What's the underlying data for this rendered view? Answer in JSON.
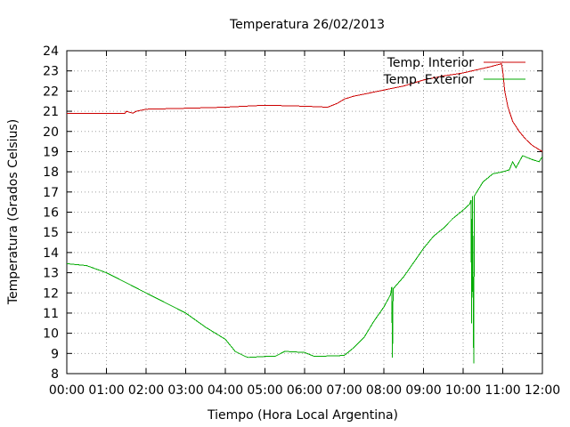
{
  "chart_data": {
    "type": "line",
    "title": "Temperatura 26/02/2013",
    "xlabel": "Tiempo (Hora Local Argentina)",
    "ylabel": "Temperatura (Grados Celsius)",
    "xlim": [
      "00:00",
      "12:00"
    ],
    "ylim": [
      8,
      24
    ],
    "grid": true,
    "legend_position": "top-right",
    "x_ticks": [
      "00:00",
      "01:00",
      "02:00",
      "03:00",
      "04:00",
      "05:00",
      "06:00",
      "07:00",
      "08:00",
      "09:00",
      "10:00",
      "11:00",
      "12:00"
    ],
    "y_ticks": [
      8,
      9,
      10,
      11,
      12,
      13,
      14,
      15,
      16,
      17,
      18,
      19,
      20,
      21,
      22,
      23,
      24
    ],
    "series": [
      {
        "name": "Temp. Interior",
        "color": "#cc0000",
        "points": [
          [
            "00:00",
            20.9
          ],
          [
            "01:00",
            20.9
          ],
          [
            "01:28",
            20.9
          ],
          [
            "01:30",
            21.0
          ],
          [
            "01:40",
            20.9
          ],
          [
            "01:45",
            21.0
          ],
          [
            "02:00",
            21.1
          ],
          [
            "03:00",
            21.15
          ],
          [
            "04:00",
            21.2
          ],
          [
            "05:00",
            21.3
          ],
          [
            "06:00",
            21.25
          ],
          [
            "06:35",
            21.2
          ],
          [
            "06:50",
            21.4
          ],
          [
            "07:00",
            21.6
          ],
          [
            "07:15",
            21.75
          ],
          [
            "07:30",
            21.85
          ],
          [
            "08:00",
            22.05
          ],
          [
            "08:30",
            22.25
          ],
          [
            "09:00",
            22.55
          ],
          [
            "09:30",
            22.75
          ],
          [
            "10:00",
            22.9
          ],
          [
            "10:20",
            23.05
          ],
          [
            "10:40",
            23.2
          ],
          [
            "10:58",
            23.35
          ],
          [
            "11:00",
            23.0
          ],
          [
            "11:03",
            22.0
          ],
          [
            "11:08",
            21.2
          ],
          [
            "11:15",
            20.5
          ],
          [
            "11:25",
            20.0
          ],
          [
            "11:35",
            19.6
          ],
          [
            "11:45",
            19.3
          ],
          [
            "12:00",
            19.0
          ]
        ]
      },
      {
        "name": "Temp. Exterior",
        "color": "#00aa00",
        "points": [
          [
            "00:00",
            13.45
          ],
          [
            "00:30",
            13.35
          ],
          [
            "01:00",
            13.0
          ],
          [
            "01:15",
            12.75
          ],
          [
            "01:30",
            12.5
          ],
          [
            "02:00",
            12.0
          ],
          [
            "02:30",
            11.5
          ],
          [
            "03:00",
            11.0
          ],
          [
            "03:30",
            10.3
          ],
          [
            "04:00",
            9.7
          ],
          [
            "04:15",
            9.1
          ],
          [
            "04:30",
            8.85
          ],
          [
            "04:35",
            8.8
          ],
          [
            "05:00",
            8.85
          ],
          [
            "05:15",
            8.85
          ],
          [
            "05:30",
            9.1
          ],
          [
            "06:00",
            9.05
          ],
          [
            "06:15",
            8.85
          ],
          [
            "07:00",
            8.9
          ],
          [
            "07:15",
            9.3
          ],
          [
            "07:30",
            9.8
          ],
          [
            "07:45",
            10.6
          ],
          [
            "08:00",
            11.3
          ],
          [
            "08:10",
            11.9
          ],
          [
            "08:12",
            12.3
          ],
          [
            "08:13",
            8.8
          ],
          [
            "08:14",
            12.2
          ],
          [
            "08:30",
            12.8
          ],
          [
            "08:45",
            13.5
          ],
          [
            "09:00",
            14.2
          ],
          [
            "09:15",
            14.8
          ],
          [
            "09:30",
            15.2
          ],
          [
            "09:45",
            15.7
          ],
          [
            "10:00",
            16.1
          ],
          [
            "10:10",
            16.4
          ],
          [
            "10:12",
            16.6
          ],
          [
            "10:13",
            10.5
          ],
          [
            "10:14",
            16.8
          ],
          [
            "10:16",
            8.5
          ],
          [
            "10:17",
            16.8
          ],
          [
            "10:30",
            17.5
          ],
          [
            "10:45",
            17.9
          ],
          [
            "11:00",
            18.0
          ],
          [
            "11:10",
            18.1
          ],
          [
            "11:15",
            18.5
          ],
          [
            "11:20",
            18.2
          ],
          [
            "11:30",
            18.8
          ],
          [
            "11:45",
            18.6
          ],
          [
            "11:55",
            18.5
          ],
          [
            "12:00",
            18.75
          ]
        ]
      }
    ]
  }
}
